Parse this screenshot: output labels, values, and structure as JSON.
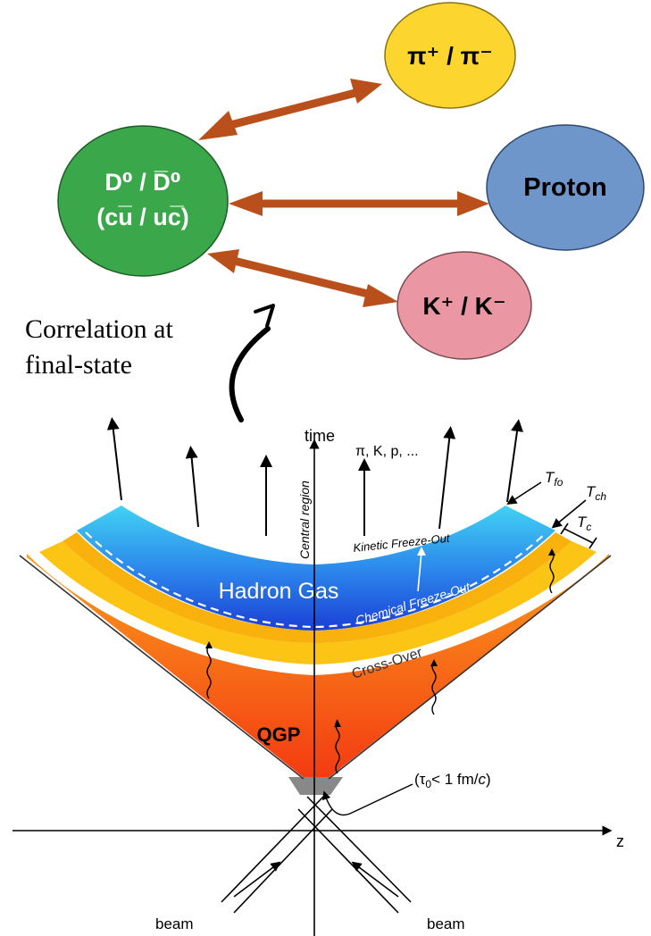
{
  "particles": {
    "d_meson": {
      "line1": "D⁰ / D̅⁰",
      "line2": "(cu̅ / uc̅)",
      "color": "#3aa84a"
    },
    "pion": {
      "label": "π⁺ / π⁻",
      "color": "#fcd52e"
    },
    "proton": {
      "label": "Proton",
      "color": "#6f96cb"
    },
    "kaon": {
      "label": "K⁺ / K⁻",
      "color": "#ea97a3"
    }
  },
  "arrow_color": "#b9501c",
  "correlation_label": {
    "line1": "Correlation at",
    "line2": "final-state"
  },
  "spacetime": {
    "axis_time": "time",
    "axis_z": "z",
    "central_region": "Central region",
    "hadron_species": "π, K, p, ...",
    "temperatures": {
      "tfo": "T",
      "tfo_sub": "fo",
      "tch": "T",
      "tch_sub": "ch",
      "tc": "T",
      "tc_sub": "c"
    },
    "kinetic_freezeout": "Kinetic Freeze-Out",
    "chemical_freezeout": "Chemical Freeze-Out",
    "hadron_gas": "Hadron Gas",
    "cross_over": "Cross-Over",
    "qgp": "QGP",
    "tau0_open": "(τ",
    "tau0_sub": "0",
    "tau0_rest": "< 1 fm/",
    "tau0_c": "c",
    "tau0_close": ")",
    "beam_left": "beam",
    "beam_right": "beam",
    "colors": {
      "hadron_gas_top": "#42d2f4",
      "hadron_gas_bottom": "#1b3fd6",
      "cross_over": "#fcc414",
      "qgp_top": "#fb9d1c",
      "qgp_bottom": "#f33a12",
      "vertex": "#888888"
    }
  }
}
